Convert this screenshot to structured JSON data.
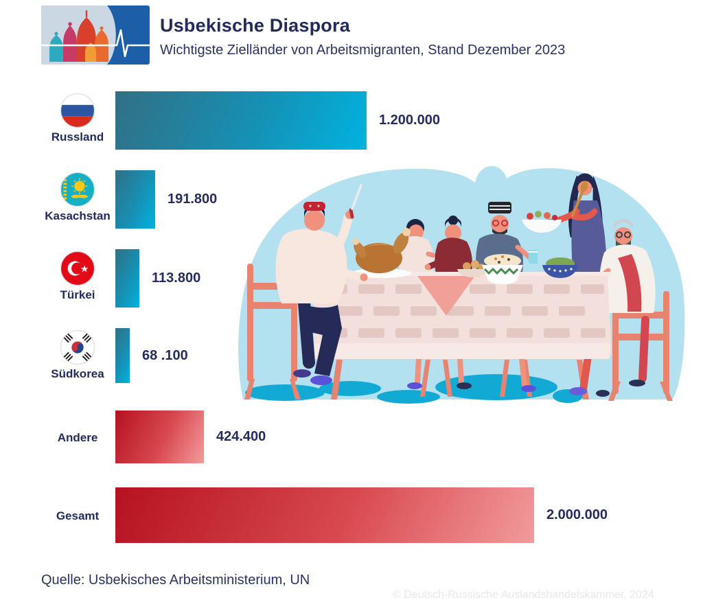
{
  "header": {
    "title": "Usbekische Diaspora",
    "subtitle": "Wichtigste Zielländer von Arbeitsmigranten, Stand Dezember 2023"
  },
  "chart_data": {
    "type": "bar",
    "orientation": "horizontal",
    "title": "Usbekische Diaspora",
    "subtitle": "Wichtigste Zielländer von Arbeitsmigranten, Stand Dezember 2023",
    "categories": [
      "Russland",
      "Kasachstan",
      "Türkei",
      "Südkorea",
      "Andere",
      "Gesamt"
    ],
    "values": [
      1200000,
      191800,
      113800,
      68100,
      424400,
      2000000
    ],
    "value_labels": [
      "1.200.000",
      "191.800",
      "113.800",
      "68 .100",
      "424.400",
      "2.000.000"
    ],
    "flags": [
      "russia",
      "kazakhstan",
      "turkey",
      "south-korea",
      "",
      ""
    ],
    "palettes": [
      "teal",
      "teal",
      "teal",
      "teal",
      "red",
      "red"
    ],
    "xlim": [
      0,
      2000000
    ],
    "legend": "none",
    "grid": false,
    "bar_colors": {
      "teal_start": "#326F84",
      "teal_end": "#00B3E0",
      "red_start": "#B5121F",
      "red_end": "#F29B9D"
    }
  },
  "footer": {
    "source": "Quelle: Usbekisches Arbeitsministerium, UN",
    "copyright": "© Deutsch-Russische Auslandshandelskammer, 2024"
  },
  "colors": {
    "text_navy": "#252B5E",
    "illustration_background": "#B3E1F0",
    "shadow_blue": "#12A9D5",
    "logo_blue": "#1C5FA8",
    "furniture_salmon": "#E8836F"
  }
}
